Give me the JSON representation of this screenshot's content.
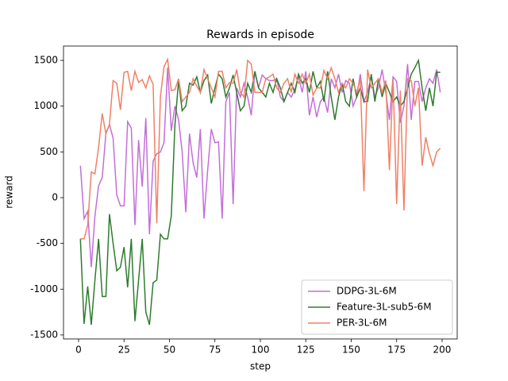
{
  "chart_data": {
    "type": "line",
    "title": "Rewards in episode",
    "x_label": "step",
    "y_label": "reward",
    "x": [
      1,
      3,
      5,
      7,
      9,
      11,
      13,
      15,
      17,
      19,
      21,
      23,
      25,
      27,
      29,
      31,
      33,
      35,
      37,
      39,
      41,
      43,
      45,
      47,
      49,
      51,
      53,
      55,
      57,
      59,
      61,
      63,
      65,
      67,
      69,
      71,
      73,
      75,
      77,
      79,
      81,
      83,
      85,
      87,
      89,
      91,
      93,
      95,
      97,
      99,
      101,
      103,
      105,
      107,
      109,
      111,
      113,
      115,
      117,
      119,
      121,
      123,
      125,
      127,
      129,
      131,
      133,
      135,
      137,
      139,
      141,
      143,
      145,
      147,
      149,
      151,
      153,
      155,
      157,
      159,
      161,
      163,
      165,
      167,
      169,
      171,
      173,
      175,
      177,
      179,
      181,
      183,
      185,
      187,
      189,
      191,
      193,
      195,
      197,
      199
    ],
    "series": [
      {
        "name": "DDPG-3L-6M",
        "color": "#c36fd9",
        "values": [
          350,
          -230,
          -150,
          -760,
          -200,
          130,
          220,
          700,
          800,
          650,
          30,
          -90,
          -90,
          830,
          760,
          -300,
          630,
          120,
          870,
          -400,
          400,
          480,
          500,
          600,
          1420,
          730,
          1000,
          850,
          500,
          -160,
          700,
          380,
          220,
          750,
          -230,
          300,
          750,
          600,
          610,
          -230,
          1050,
          1150,
          -70,
          1200,
          1100,
          1250,
          1100,
          900,
          1380,
          1200,
          1340,
          1300,
          1280,
          1280,
          1300,
          1100,
          1050,
          1150,
          1100,
          1180,
          1330,
          1150,
          1380,
          900,
          1100,
          880,
          1050,
          1100,
          930,
          1300,
          1200,
          1350,
          1150,
          1280,
          1250,
          1000,
          1100,
          1350,
          1050,
          1150,
          1320,
          1100,
          1200,
          1400,
          1150,
          850,
          1320,
          1270,
          820,
          1000,
          1460,
          850,
          1270,
          1270,
          1050,
          1200,
          1300,
          1250,
          1400,
          1150
        ]
      },
      {
        "name": "Feature-3L-sub5-6M",
        "color": "#2e7b2e",
        "values": [
          -450,
          -1380,
          -970,
          -1390,
          -900,
          -450,
          -1080,
          -1080,
          -180,
          -500,
          -800,
          -760,
          -540,
          -980,
          -450,
          -1350,
          -900,
          -450,
          -1250,
          -1390,
          -930,
          -900,
          -400,
          -450,
          -450,
          -200,
          800,
          1280,
          950,
          1000,
          1250,
          1230,
          1320,
          1150,
          1280,
          1340,
          1030,
          1200,
          1350,
          1300,
          1100,
          1200,
          1340,
          1150,
          950,
          1000,
          1250,
          1150,
          1380,
          1200,
          1150,
          1100,
          1250,
          1150,
          1300,
          1200,
          1050,
          1150,
          1250,
          1150,
          1350,
          1250,
          1300,
          1150,
          1380,
          1200,
          1270,
          1050,
          1380,
          1100,
          850,
          1100,
          1250,
          1050,
          1000,
          1300,
          1100,
          1200,
          1050,
          1050,
          1350,
          1050,
          1300,
          1100,
          1250,
          1150,
          1050,
          1100,
          1000,
          1050,
          1200,
          1350,
          1420,
          1500,
          1200,
          950,
          1200,
          1000,
          1370,
          1370
        ]
      },
      {
        "name": "PER-3L-6M",
        "color": "#f08066",
        "values": [
          -450,
          -450,
          -300,
          280,
          260,
          550,
          920,
          700,
          800,
          1280,
          1250,
          960,
          1370,
          1380,
          1170,
          1380,
          1260,
          1290,
          1200,
          1330,
          1240,
          -280,
          1100,
          1430,
          1510,
          1170,
          1180,
          1300,
          1050,
          1100,
          1150,
          1300,
          1220,
          1150,
          1400,
          1300,
          1200,
          1100,
          1380,
          1380,
          1200,
          1260,
          1250,
          1400,
          1150,
          1100,
          1500,
          1460,
          1150,
          1150,
          1150,
          1300,
          1320,
          1350,
          1200,
          1150,
          1250,
          1300,
          1150,
          1350,
          1250,
          1350,
          1250,
          1350,
          1120,
          1200,
          1200,
          1390,
          1300,
          1420,
          1300,
          1150,
          1250,
          1200,
          1300,
          1250,
          1150,
          1300,
          70,
          1400,
          1200,
          1250,
          1300,
          1150,
          1280,
          300,
          1300,
          -70,
          1170,
          -140,
          1300,
          1280,
          1000,
          1200,
          350,
          660,
          480,
          350,
          500,
          540
        ]
      }
    ],
    "xlim": [
      -8.3,
      208.3
    ],
    "ylim": [
      -1544,
      1657
    ],
    "xticks": [
      0,
      25,
      50,
      75,
      100,
      125,
      150,
      175,
      200
    ],
    "yticks": [
      -1500,
      -1000,
      -500,
      0,
      500,
      1000,
      1500
    ],
    "legend": "lower right"
  }
}
